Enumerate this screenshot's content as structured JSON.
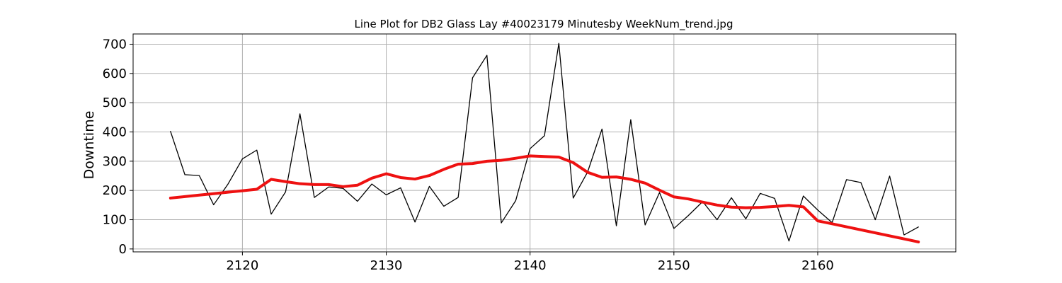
{
  "chart_data": {
    "type": "line",
    "title": "Line Plot for DB2 Glass Lay #40023179 Minutesby WeekNum_trend.jpg",
    "xlabel": "",
    "ylabel": "Downtime",
    "xlim": [
      2112.4,
      2169.6
    ],
    "ylim": [
      -10,
      735
    ],
    "xticks": [
      2120,
      2130,
      2140,
      2150,
      2160
    ],
    "yticks": [
      0,
      100,
      200,
      300,
      400,
      500,
      600,
      700
    ],
    "grid": true,
    "series": [
      {
        "name": "",
        "color": "#000000",
        "x": [
          2115,
          2116,
          2117,
          2118,
          2119,
          2120,
          2121,
          2122,
          2123,
          2124,
          2125,
          2126,
          2127,
          2128,
          2129,
          2130,
          2131,
          2132,
          2133,
          2134,
          2135,
          2136,
          2137,
          2138,
          2139,
          2140,
          2141,
          2142,
          2143,
          2144,
          2145,
          2146,
          2147,
          2148,
          2149,
          2150,
          2151,
          2152,
          2153,
          2154,
          2155,
          2156,
          2157,
          2158,
          2159,
          2160,
          2161,
          2162,
          2163,
          2164,
          2165,
          2166,
          2167
        ],
        "values": [
          402,
          254,
          251,
          151,
          222,
          308,
          338,
          119,
          195,
          462,
          176,
          212,
          207,
          163,
          222,
          185,
          209,
          92,
          214,
          146,
          176,
          585,
          662,
          89,
          165,
          343,
          387,
          703,
          174,
          263,
          410,
          79,
          442,
          82,
          193,
          70,
          114,
          162,
          100,
          175,
          103,
          190,
          173,
          27,
          181,
          133,
          90,
          237,
          227,
          100,
          249,
          48,
          75
        ]
      },
      {
        "name": "",
        "color": "#ee1111",
        "x": [
          2115,
          2116,
          2117,
          2118,
          2119,
          2120,
          2121,
          2122,
          2123,
          2124,
          2125,
          2126,
          2127,
          2128,
          2129,
          2130,
          2131,
          2132,
          2133,
          2134,
          2135,
          2136,
          2137,
          2138,
          2139,
          2140,
          2141,
          2142,
          2143,
          2144,
          2145,
          2146,
          2147,
          2148,
          2149,
          2150,
          2151,
          2152,
          2153,
          2154,
          2155,
          2156,
          2157,
          2158,
          2159,
          2160,
          2161,
          2167
        ],
        "values": [
          174,
          179,
          184,
          189,
          194,
          199,
          204,
          238,
          230,
          223,
          220,
          220,
          213,
          218,
          242,
          257,
          244,
          239,
          251,
          272,
          290,
          292,
          300,
          303,
          310,
          318,
          316,
          314,
          295,
          262,
          245,
          246,
          238,
          225,
          201,
          178,
          171,
          160,
          150,
          143,
          141,
          142,
          145,
          149,
          144,
          96,
          86,
          24
        ]
      }
    ]
  }
}
